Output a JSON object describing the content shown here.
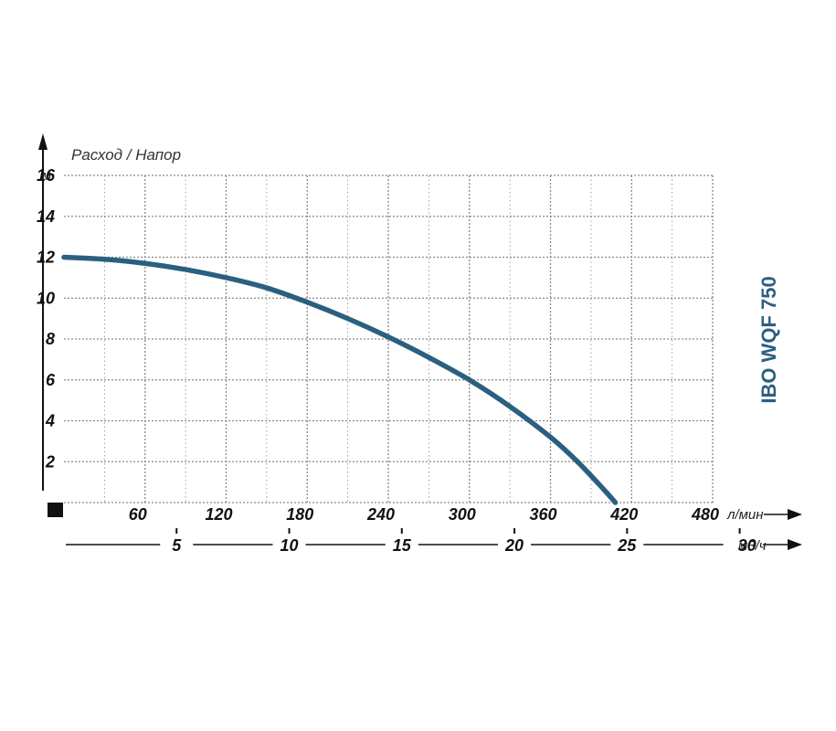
{
  "chart_data": {
    "type": "line",
    "title": "IBO WQF 750",
    "axis_title": "Расход / Напор",
    "y_unit": "м",
    "x_unit": "л/мин",
    "x2_unit": "м3/ч",
    "ylim": [
      0,
      16
    ],
    "xlim": [
      0,
      480
    ],
    "y_ticks": [
      "16",
      "14",
      "12",
      "10",
      "8",
      "6",
      "4",
      "2"
    ],
    "x_ticks": [
      "60",
      "120",
      "180",
      "240",
      "300",
      "360",
      "420",
      "480"
    ],
    "x2_ticks": [
      "5",
      "10",
      "15",
      "20",
      "25",
      "30"
    ],
    "grid": true,
    "series": [
      {
        "x": [
          0,
          30,
          60,
          90,
          120,
          150,
          180,
          210,
          240,
          270,
          300,
          330,
          360,
          380,
          400,
          408
        ],
        "y": [
          12.0,
          11.9,
          11.7,
          11.4,
          11.0,
          10.5,
          9.8,
          9.0,
          8.1,
          7.1,
          6.0,
          4.7,
          3.2,
          2.0,
          0.6,
          0
        ]
      }
    ],
    "colors": {
      "curve": "#2b5f80",
      "model": "#2b5f80",
      "grid": "#8a8a8a",
      "axis": "#111111"
    }
  }
}
